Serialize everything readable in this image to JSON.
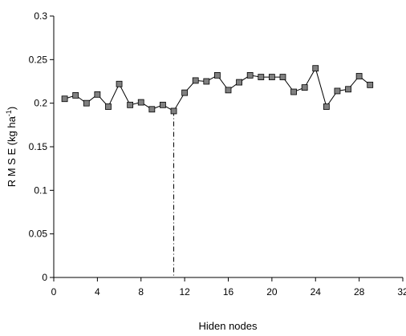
{
  "chart_data": {
    "type": "line",
    "title": "",
    "xlabel": "Hiden nodes",
    "ylabel": {
      "main": "R M S E  (kg ha",
      "superscript": "-1",
      "close": ")"
    },
    "xlim": [
      0,
      32
    ],
    "ylim": [
      0,
      0.3
    ],
    "x_ticks": [
      0,
      4,
      8,
      12,
      16,
      20,
      24,
      28,
      32
    ],
    "x_tick_labels": [
      "0",
      "4",
      "8",
      "12",
      "16",
      "20",
      "24",
      "28",
      "32"
    ],
    "y_ticks": [
      0,
      0.05,
      0.1,
      0.15,
      0.2,
      0.25,
      0.3
    ],
    "y_tick_labels": [
      "0",
      "0.05",
      "0.1",
      "0.15",
      "0.2",
      "0.25",
      "0.3"
    ],
    "grid": false,
    "legend": "none",
    "marker": "square",
    "marker_color": "#808080",
    "line_color": "#000000",
    "series": [
      {
        "x": [
          1,
          2,
          3,
          4,
          5,
          6,
          7,
          8,
          9,
          10,
          11,
          12,
          13,
          14,
          15,
          16,
          17,
          18,
          19,
          20,
          21,
          22,
          23,
          24,
          25,
          26,
          27,
          28,
          29
        ],
        "values": [
          0.205,
          0.209,
          0.2,
          0.21,
          0.196,
          0.222,
          0.198,
          0.201,
          0.193,
          0.198,
          0.191,
          0.212,
          0.226,
          0.225,
          0.232,
          0.215,
          0.224,
          0.232,
          0.23,
          0.23,
          0.23,
          0.213,
          0.218,
          0.24,
          0.196,
          0.214,
          0.216,
          0.231,
          0.221
        ]
      }
    ],
    "reference_line": {
      "x": 11,
      "style": "dash-dot"
    }
  }
}
